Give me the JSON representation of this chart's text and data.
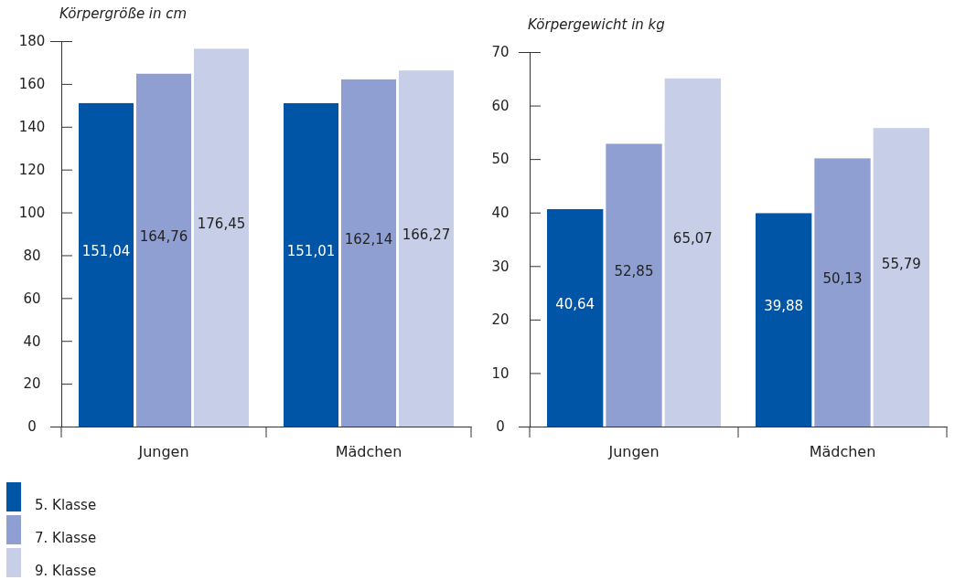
{
  "chart_data": [
    {
      "type": "bar",
      "ylabel": "Körpergröße in cm",
      "categories": [
        "Jungen",
        "Mädchen"
      ],
      "ylim": [
        0,
        180
      ],
      "yticks": [
        0,
        20,
        40,
        60,
        80,
        100,
        120,
        140,
        160,
        180
      ],
      "legend": "bottom left",
      "grid": false,
      "series": [
        {
          "name": "5. Klasse",
          "color": "#0055a6",
          "values": [
            151.04,
            151.01
          ],
          "value_labels": [
            "151,04",
            "151,01"
          ]
        },
        {
          "name": "7. Klasse",
          "color": "#8f9fd1",
          "values": [
            164.76,
            162.14
          ],
          "value_labels": [
            "164,76",
            "162,14"
          ]
        },
        {
          "name": "9. Klasse",
          "color": "#c7cee8",
          "values": [
            176.45,
            166.27
          ],
          "value_labels": [
            "176,45",
            "166,27"
          ]
        }
      ]
    },
    {
      "type": "bar",
      "ylabel": "Körpergewicht in kg",
      "categories": [
        "Jungen",
        "Mädchen"
      ],
      "ylim": [
        0,
        70
      ],
      "yticks": [
        0,
        10,
        20,
        30,
        40,
        50,
        60,
        70
      ],
      "grid": false,
      "series": [
        {
          "color": "#0055a6",
          "values": [
            40.64,
            39.88
          ],
          "value_labels": [
            "40,64",
            "39,88"
          ]
        },
        {
          "color": "#8f9fd1",
          "values": [
            52.85,
            50.13
          ],
          "value_labels": [
            "52,85",
            "50,13"
          ]
        },
        {
          "color": "#c7cee8",
          "values": [
            65.07,
            55.79
          ],
          "value_labels": [
            "65,07",
            "55,79"
          ]
        }
      ]
    }
  ]
}
